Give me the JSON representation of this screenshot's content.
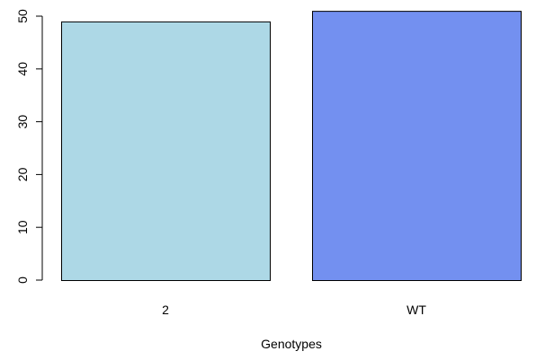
{
  "chart_data": {
    "type": "bar",
    "title": "",
    "xlabel": "Genotypes",
    "ylabel": "",
    "categories": [
      "2",
      "WT"
    ],
    "values": [
      49,
      51
    ],
    "bar_colors": [
      "#add8e6",
      "#7390f0"
    ],
    "bar_border_color": "#000000",
    "ylim": [
      0,
      50
    ],
    "yticks": [
      0,
      10,
      20,
      30,
      40,
      50
    ],
    "grid": false,
    "legend": "none"
  }
}
